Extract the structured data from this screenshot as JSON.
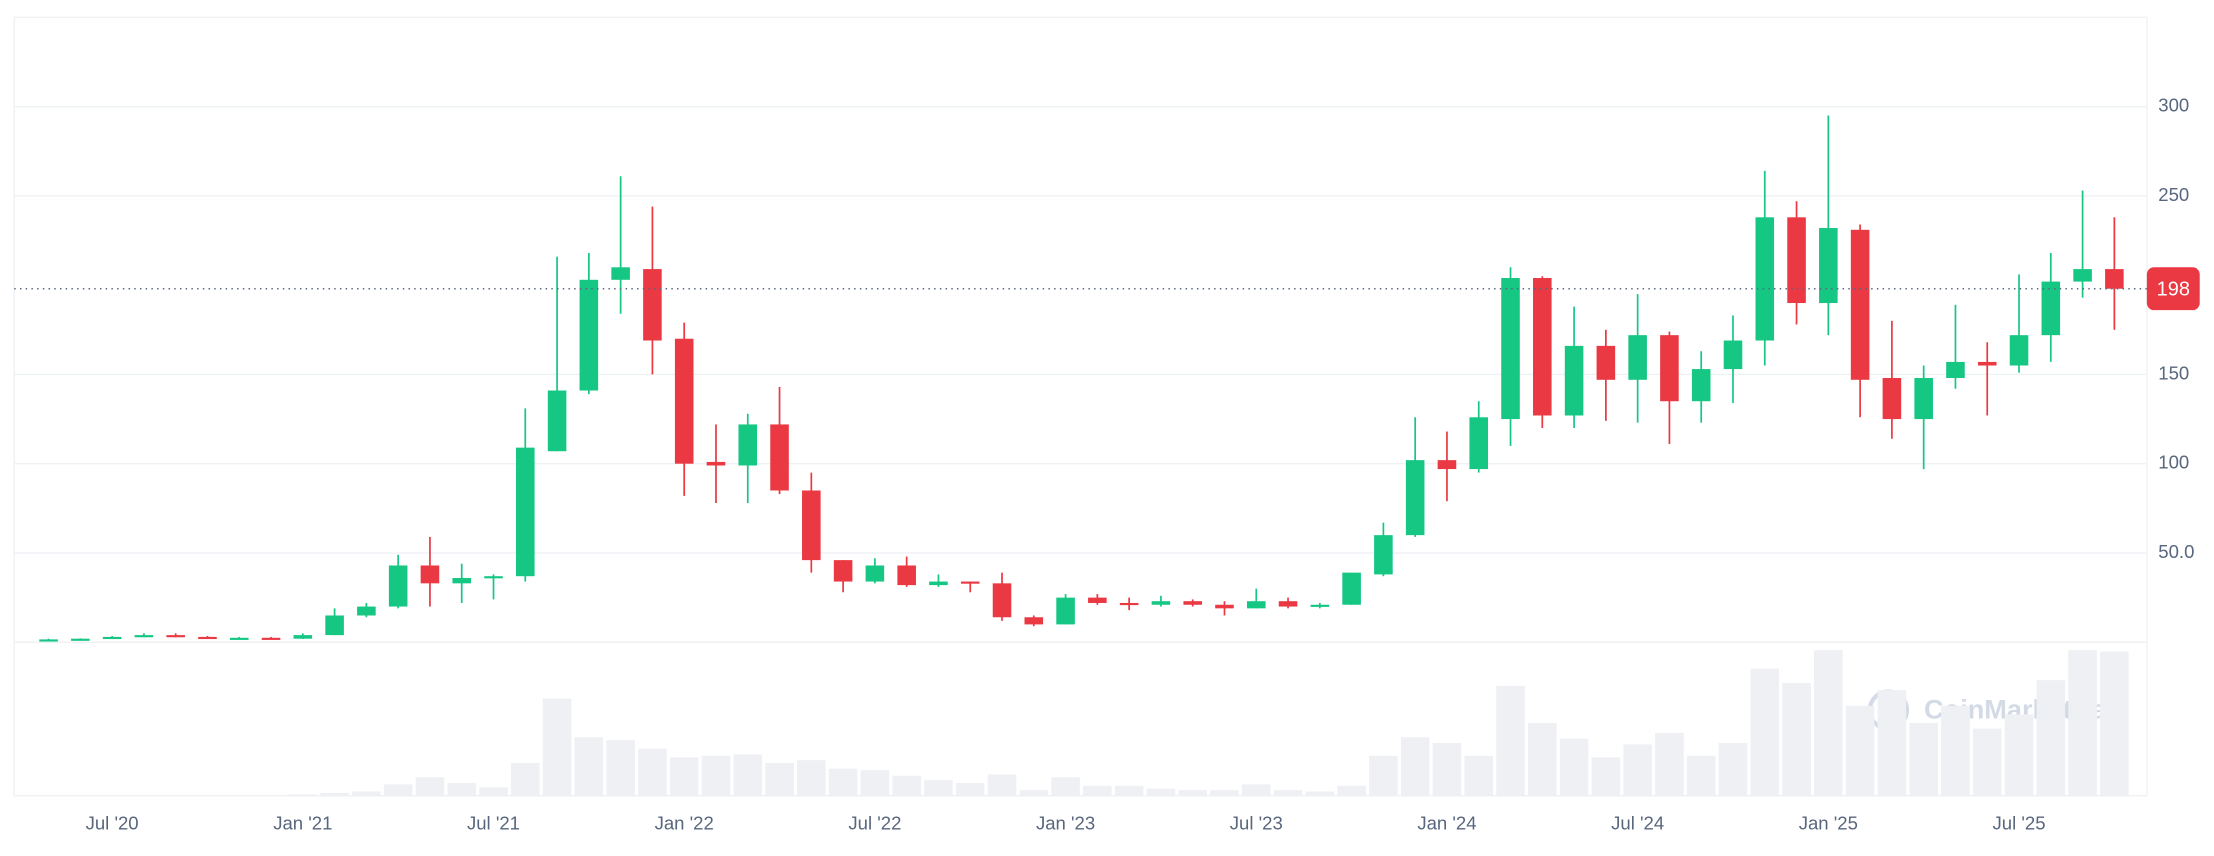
{
  "chart_data": {
    "type": "candlestick",
    "categories": [
      null,
      null,
      "Jul '20",
      null,
      null,
      null,
      null,
      null,
      "Jan '21",
      null,
      null,
      null,
      null,
      null,
      "Jul '21",
      null,
      null,
      null,
      null,
      null,
      "Jan '22",
      null,
      null,
      null,
      null,
      null,
      "Jul '22",
      null,
      null,
      null,
      null,
      null,
      "Jan '23",
      null,
      null,
      null,
      null,
      null,
      "Jul '23",
      null,
      null,
      null,
      null,
      null,
      "Jan '24",
      null,
      null,
      null,
      null,
      null,
      "Jul '24",
      null,
      null,
      null,
      null,
      null,
      "Jan '25",
      null,
      null,
      null,
      null,
      null,
      "Jul '25",
      null,
      null,
      null
    ],
    "open": [
      1.5,
      1.8,
      2,
      3,
      4,
      3,
      2.5,
      2.5,
      2,
      4,
      15,
      20,
      43,
      33,
      36,
      37,
      107,
      141,
      203,
      209,
      170,
      101,
      99,
      122,
      85,
      46,
      34,
      43,
      32,
      34,
      33,
      14,
      10,
      25,
      22,
      21,
      23,
      21,
      19,
      23,
      20,
      21,
      38,
      60,
      102,
      97,
      125,
      204,
      127,
      166,
      147,
      172,
      135,
      153,
      169,
      238,
      190,
      231,
      148,
      125,
      148,
      157,
      155,
      172,
      202,
      209
    ],
    "high": [
      2,
      2.2,
      3.5,
      5,
      5,
      3.5,
      3,
      3,
      5,
      19,
      22,
      49,
      59,
      44,
      38,
      131,
      216,
      218,
      261,
      244,
      179,
      122,
      128,
      143,
      95,
      46,
      47,
      48,
      38,
      34,
      39,
      15,
      27,
      27,
      25,
      26,
      24,
      23,
      30,
      25,
      22,
      39,
      67,
      126,
      118,
      135,
      210,
      205,
      188,
      175,
      195,
      174,
      163,
      183,
      264,
      247,
      295,
      234,
      180,
      155,
      189,
      168,
      206,
      218,
      253,
      238
    ],
    "low": [
      1.2,
      1.5,
      1.8,
      2.8,
      2.8,
      2.2,
      2.2,
      1.8,
      1.8,
      4,
      14,
      19,
      20,
      22,
      24,
      34,
      107,
      139,
      184,
      150,
      82,
      78,
      78,
      83,
      39,
      28,
      33,
      31,
      31,
      28,
      12,
      9,
      10,
      21,
      18,
      20,
      20,
      15,
      19,
      19,
      19,
      21,
      37,
      59,
      79,
      95,
      110,
      120,
      120,
      124,
      123,
      111,
      123,
      134,
      155,
      178,
      172,
      126,
      114,
      97,
      142,
      127,
      151,
      157,
      193,
      175
    ],
    "close": [
      1.6,
      2,
      3,
      4,
      3,
      2.5,
      2.5,
      2,
      4,
      15,
      20,
      43,
      33,
      36,
      37,
      109,
      141,
      203,
      210,
      169,
      100,
      99,
      122,
      85,
      46,
      34,
      43,
      32,
      34,
      33,
      14,
      10,
      25,
      22,
      21,
      23,
      21,
      19,
      23,
      20,
      21,
      39,
      60,
      102,
      97,
      126,
      204,
      127,
      166,
      147,
      172,
      135,
      153,
      169,
      238,
      190,
      232,
      147,
      125,
      148,
      157,
      155,
      172,
      202,
      209,
      198
    ],
    "volume": [
      0,
      0,
      0,
      0,
      0,
      0,
      0,
      0,
      1,
      2,
      3,
      8,
      13,
      9,
      6,
      23,
      68,
      41,
      39,
      33,
      27,
      28,
      29,
      23,
      25,
      19,
      18,
      14,
      11,
      9,
      15,
      4,
      13,
      7,
      7,
      5,
      4,
      4,
      8,
      4,
      3,
      7,
      28,
      41,
      37,
      28,
      77,
      51,
      40,
      27,
      36,
      44,
      28,
      37,
      89,
      79,
      102,
      63,
      74,
      51,
      63,
      47,
      57,
      81,
      102,
      101
    ],
    "up_color": "#16c784",
    "down_color": "#ea3943",
    "volume_color": "#eff0f4",
    "ylim": [
      0,
      350
    ],
    "yticks": [
      {
        "value": 50,
        "label": "50.0"
      },
      100,
      150,
      250,
      300
    ],
    "grid": true,
    "current_price": 198,
    "watermark": "CoinMarketCap"
  }
}
